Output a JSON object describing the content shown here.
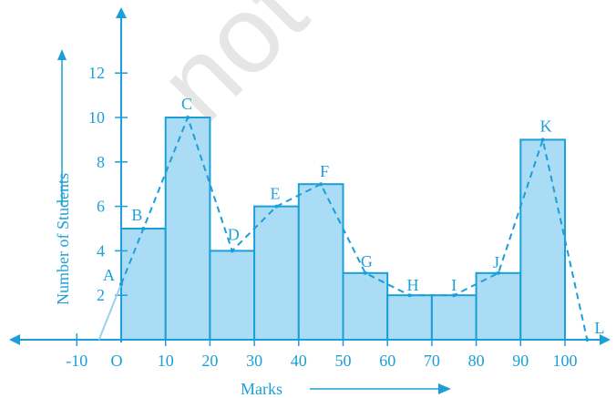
{
  "chart_data": {
    "type": "bar",
    "subtype": "histogram with frequency polygon",
    "xlabel": "Marks",
    "ylabel": "Number of Students",
    "x_ticks": [
      "-10",
      "O",
      "10",
      "20",
      "30",
      "40",
      "50",
      "60",
      "70",
      "80",
      "90",
      "100"
    ],
    "y_ticks": [
      "2",
      "4",
      "6",
      "8",
      "10",
      "12"
    ],
    "xlim": [
      -12,
      106
    ],
    "ylim": [
      0,
      14
    ],
    "bins": [
      {
        "from": 0,
        "to": 10,
        "value": 5
      },
      {
        "from": 10,
        "to": 20,
        "value": 10
      },
      {
        "from": 20,
        "to": 30,
        "value": 4
      },
      {
        "from": 30,
        "to": 40,
        "value": 6
      },
      {
        "from": 40,
        "to": 50,
        "value": 7
      },
      {
        "from": 50,
        "to": 60,
        "value": 3
      },
      {
        "from": 60,
        "to": 70,
        "value": 2
      },
      {
        "from": 70,
        "to": 80,
        "value": 2
      },
      {
        "from": 80,
        "to": 90,
        "value": 3
      },
      {
        "from": 90,
        "to": 100,
        "value": 9
      }
    ],
    "polygon_points": [
      {
        "label": "A",
        "x": 0,
        "y": 2.5
      },
      {
        "label": "B",
        "x": 5,
        "y": 5
      },
      {
        "label": "C",
        "x": 15,
        "y": 10
      },
      {
        "label": "D",
        "x": 25,
        "y": 4
      },
      {
        "label": "E",
        "x": 35,
        "y": 6
      },
      {
        "label": "F",
        "x": 45,
        "y": 7
      },
      {
        "label": "G",
        "x": 55,
        "y": 3
      },
      {
        "label": "H",
        "x": 65,
        "y": 2
      },
      {
        "label": "I",
        "x": 75,
        "y": 2
      },
      {
        "label": "J",
        "x": 85,
        "y": 3
      },
      {
        "label": "K",
        "x": 95,
        "y": 9
      },
      {
        "label": "L",
        "x": 105,
        "y": 0
      }
    ],
    "colors": {
      "bar_fill": "#abdcf6",
      "ink": "#1a9fd8",
      "watermark": "#e6e6e6"
    },
    "watermark": "not to be republished"
  }
}
